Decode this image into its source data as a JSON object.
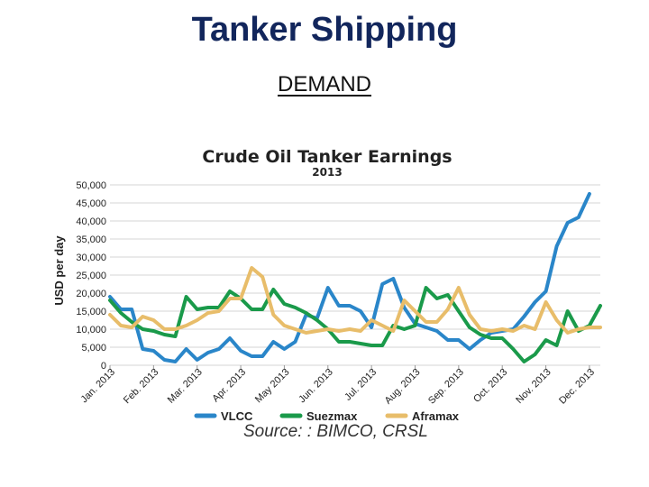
{
  "slide": {
    "title": "Tanker Shipping",
    "subtitle": "DEMAND",
    "source": "Source: : BIMCO, CRSL"
  },
  "chart_data": {
    "type": "line",
    "title": "Crude Oil Tanker Earnings",
    "subtitle": "2013",
    "ylabel": "USD per day",
    "xlabel": "",
    "ylim": [
      0,
      50000
    ],
    "yticks": [
      0,
      5000,
      10000,
      15000,
      20000,
      25000,
      30000,
      35000,
      40000,
      45000,
      50000
    ],
    "ytick_labels": [
      "0",
      "5,000",
      "10,000",
      "15,000",
      "20,000",
      "25,000",
      "30,000",
      "35,000",
      "40,000",
      "45,000",
      "50,000"
    ],
    "categories": [
      "Jan. 2013",
      "Feb. 2013",
      "Mar. 2013",
      "Apr. 2013",
      "May 2013",
      "Jun. 2013",
      "Jul. 2013",
      "Aug. 2013",
      "Sep. 2013",
      "Oct. 2013",
      "Nov. 2013",
      "Dec. 2013"
    ],
    "grid": "horizontal",
    "legend_position": "bottom",
    "x": [
      0,
      0.25,
      0.5,
      0.75,
      1,
      1.25,
      1.5,
      1.75,
      2,
      2.25,
      2.5,
      2.75,
      3,
      3.25,
      3.5,
      3.75,
      4,
      4.25,
      4.5,
      4.75,
      5,
      5.25,
      5.5,
      5.75,
      6,
      6.25,
      6.5,
      6.75,
      7,
      7.25,
      7.5,
      7.75,
      8,
      8.25,
      8.5,
      8.75,
      9,
      9.25,
      9.5,
      9.75,
      10,
      10.25,
      10.5,
      10.75,
      11,
      11.25
    ],
    "series": [
      {
        "name": "VLCC",
        "color": "#2a86c9",
        "values": [
          19000,
          15500,
          15500,
          4500,
          4000,
          1500,
          1000,
          4500,
          1500,
          3500,
          4500,
          7500,
          4000,
          2500,
          2500,
          6500,
          4500,
          6500,
          14000,
          13000,
          21500,
          16500,
          16500,
          15000,
          10500,
          22500,
          24000,
          16000,
          11500,
          10500,
          9500,
          7000,
          7000,
          4500,
          7000,
          9000,
          9500,
          10000,
          13500,
          17500,
          20500,
          33000,
          39500,
          41000,
          47500,
          null
        ]
      },
      {
        "name": "Suezmax",
        "color": "#1a9a4a",
        "values": [
          18000,
          14500,
          12000,
          10000,
          9500,
          8500,
          8000,
          19000,
          15500,
          16000,
          16000,
          20500,
          18500,
          15500,
          15500,
          21000,
          17000,
          16000,
          14500,
          12500,
          10000,
          6500,
          6500,
          6000,
          5500,
          5500,
          11000,
          10000,
          11000,
          21500,
          18500,
          19500,
          15000,
          10500,
          8500,
          7500,
          7500,
          4500,
          1000,
          3000,
          7000,
          5500,
          15000,
          9500,
          11000,
          16500
        ]
      },
      {
        "name": "Aframax",
        "color": "#e8bd6a",
        "values": [
          14000,
          11000,
          10500,
          13500,
          12500,
          10000,
          10000,
          11000,
          12500,
          14500,
          15000,
          18500,
          18500,
          27000,
          24500,
          14000,
          11000,
          10000,
          9000,
          9500,
          10000,
          9500,
          10000,
          9500,
          12500,
          11000,
          9500,
          18000,
          15000,
          12000,
          12000,
          15500,
          21500,
          14000,
          10000,
          9500,
          10000,
          9500,
          11000,
          10000,
          17500,
          12500,
          9000,
          10000,
          10500,
          10500
        ]
      }
    ]
  }
}
